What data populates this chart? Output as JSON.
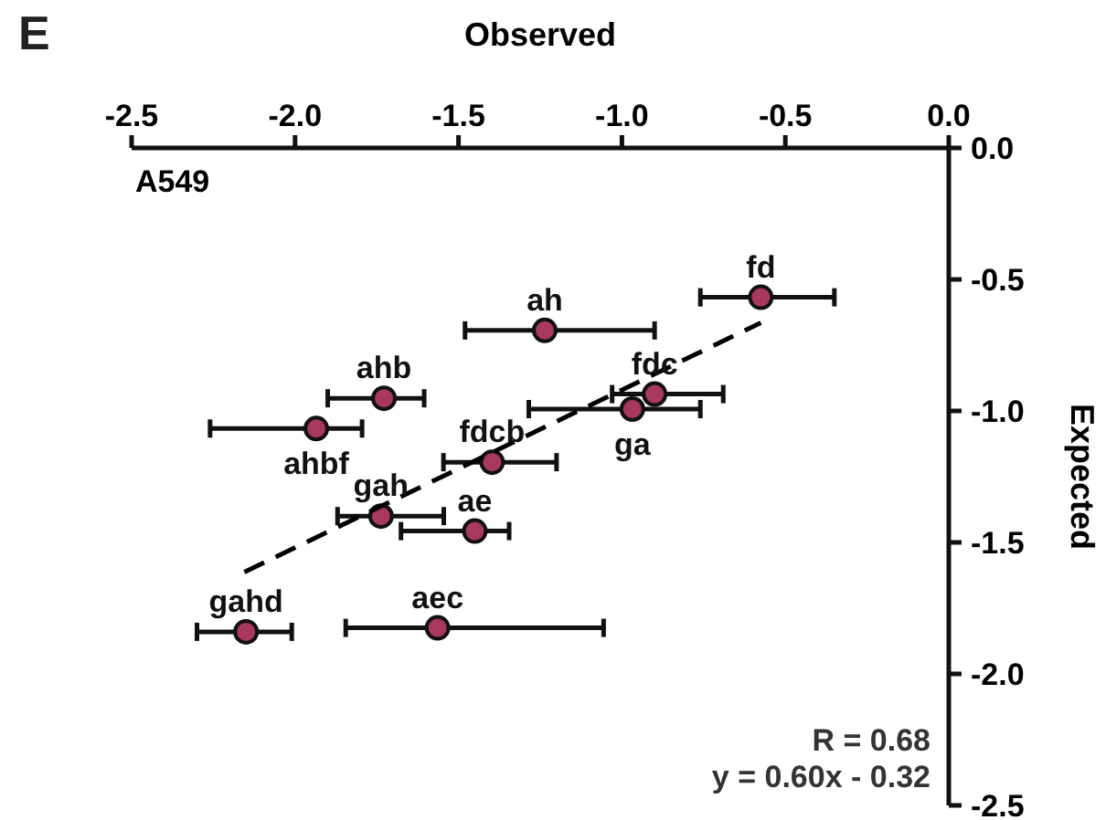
{
  "chart_data": {
    "type": "scatter",
    "title": "E",
    "xlabel": "Observed",
    "ylabel": "Expected",
    "xlim": [
      -2.5,
      0
    ],
    "xticks": [
      {
        "value": -2.5,
        "label": "-2.5"
      },
      {
        "value": -2,
        "label": "-2.0"
      },
      {
        "value": -1.5,
        "label": "-1.5"
      },
      {
        "value": -1,
        "label": "-1.0"
      },
      {
        "value": -0.5,
        "label": "-0.5"
      },
      {
        "value": 0,
        "label": "0.0"
      }
    ],
    "ylim": [
      -2.5,
      0
    ],
    "yticks": [
      {
        "value": 0,
        "label": "0.0"
      },
      {
        "value": -0.5,
        "label": "-0.5"
      },
      {
        "value": -1,
        "label": "-1.0"
      },
      {
        "value": -1.5,
        "label": "-1.5"
      },
      {
        "value": -2,
        "label": "-2.0"
      },
      {
        "value": -2.5,
        "label": "-2.5"
      }
    ],
    "grid": false,
    "marker": "circle",
    "series": [
      {
        "color": "#a8385e",
        "x": [
          -0.575,
          -1.236,
          -0.9,
          -0.968,
          -1.728,
          -1.935,
          -1.397,
          -1.737,
          -1.45,
          -2.15,
          -1.564
        ],
        "values": [
          -0.568,
          -0.694,
          -0.936,
          -0.993,
          -0.952,
          -1.067,
          -1.195,
          -1.4,
          -1.457,
          -1.84,
          -1.825
        ],
        "xerrors": [
          [
            -0.76,
            -0.35
          ],
          [
            -1.48,
            -0.9
          ],
          [
            -1.03,
            -0.69
          ],
          [
            -1.285,
            -0.76
          ],
          [
            -1.9,
            -1.605
          ],
          [
            -2.26,
            -1.795
          ],
          [
            -1.546,
            -1.2
          ],
          [
            -1.87,
            -1.545
          ],
          [
            -1.676,
            -1.345
          ],
          [
            -2.3,
            -2.01
          ],
          [
            -1.845,
            -1.056
          ]
        ]
      },
      {
        "type": "line",
        "color": "#000000",
        "line_style": "dashed",
        "marker": "none",
        "x": [
          -2.155,
          -0.575
        ],
        "values": [
          -1.613,
          -0.665
        ]
      }
    ],
    "annotations": [
      {
        "text": "fd",
        "x": -0.575,
        "y": -0.568
      },
      {
        "text": "ah",
        "x": -1.236,
        "y": -0.694
      },
      {
        "text": "fdc",
        "x": -0.9,
        "y": -0.936
      },
      {
        "text": "ga",
        "x": -0.968,
        "y": -0.993
      },
      {
        "text": "ahb",
        "x": -1.728,
        "y": -0.952
      },
      {
        "text": "ahbf",
        "x": -1.935,
        "y": -1.067
      },
      {
        "text": "fdcb",
        "x": -1.397,
        "y": -1.195
      },
      {
        "text": "gah",
        "x": -1.737,
        "y": -1.4
      },
      {
        "text": "ae",
        "x": -1.45,
        "y": -1.457
      },
      {
        "text": "gahd",
        "x": -2.15,
        "y": -1.84
      },
      {
        "text": "aec",
        "x": -1.564,
        "y": -1.825
      },
      "A549",
      "R = 0.68",
      "y = 0.60x - 0.32"
    ]
  }
}
